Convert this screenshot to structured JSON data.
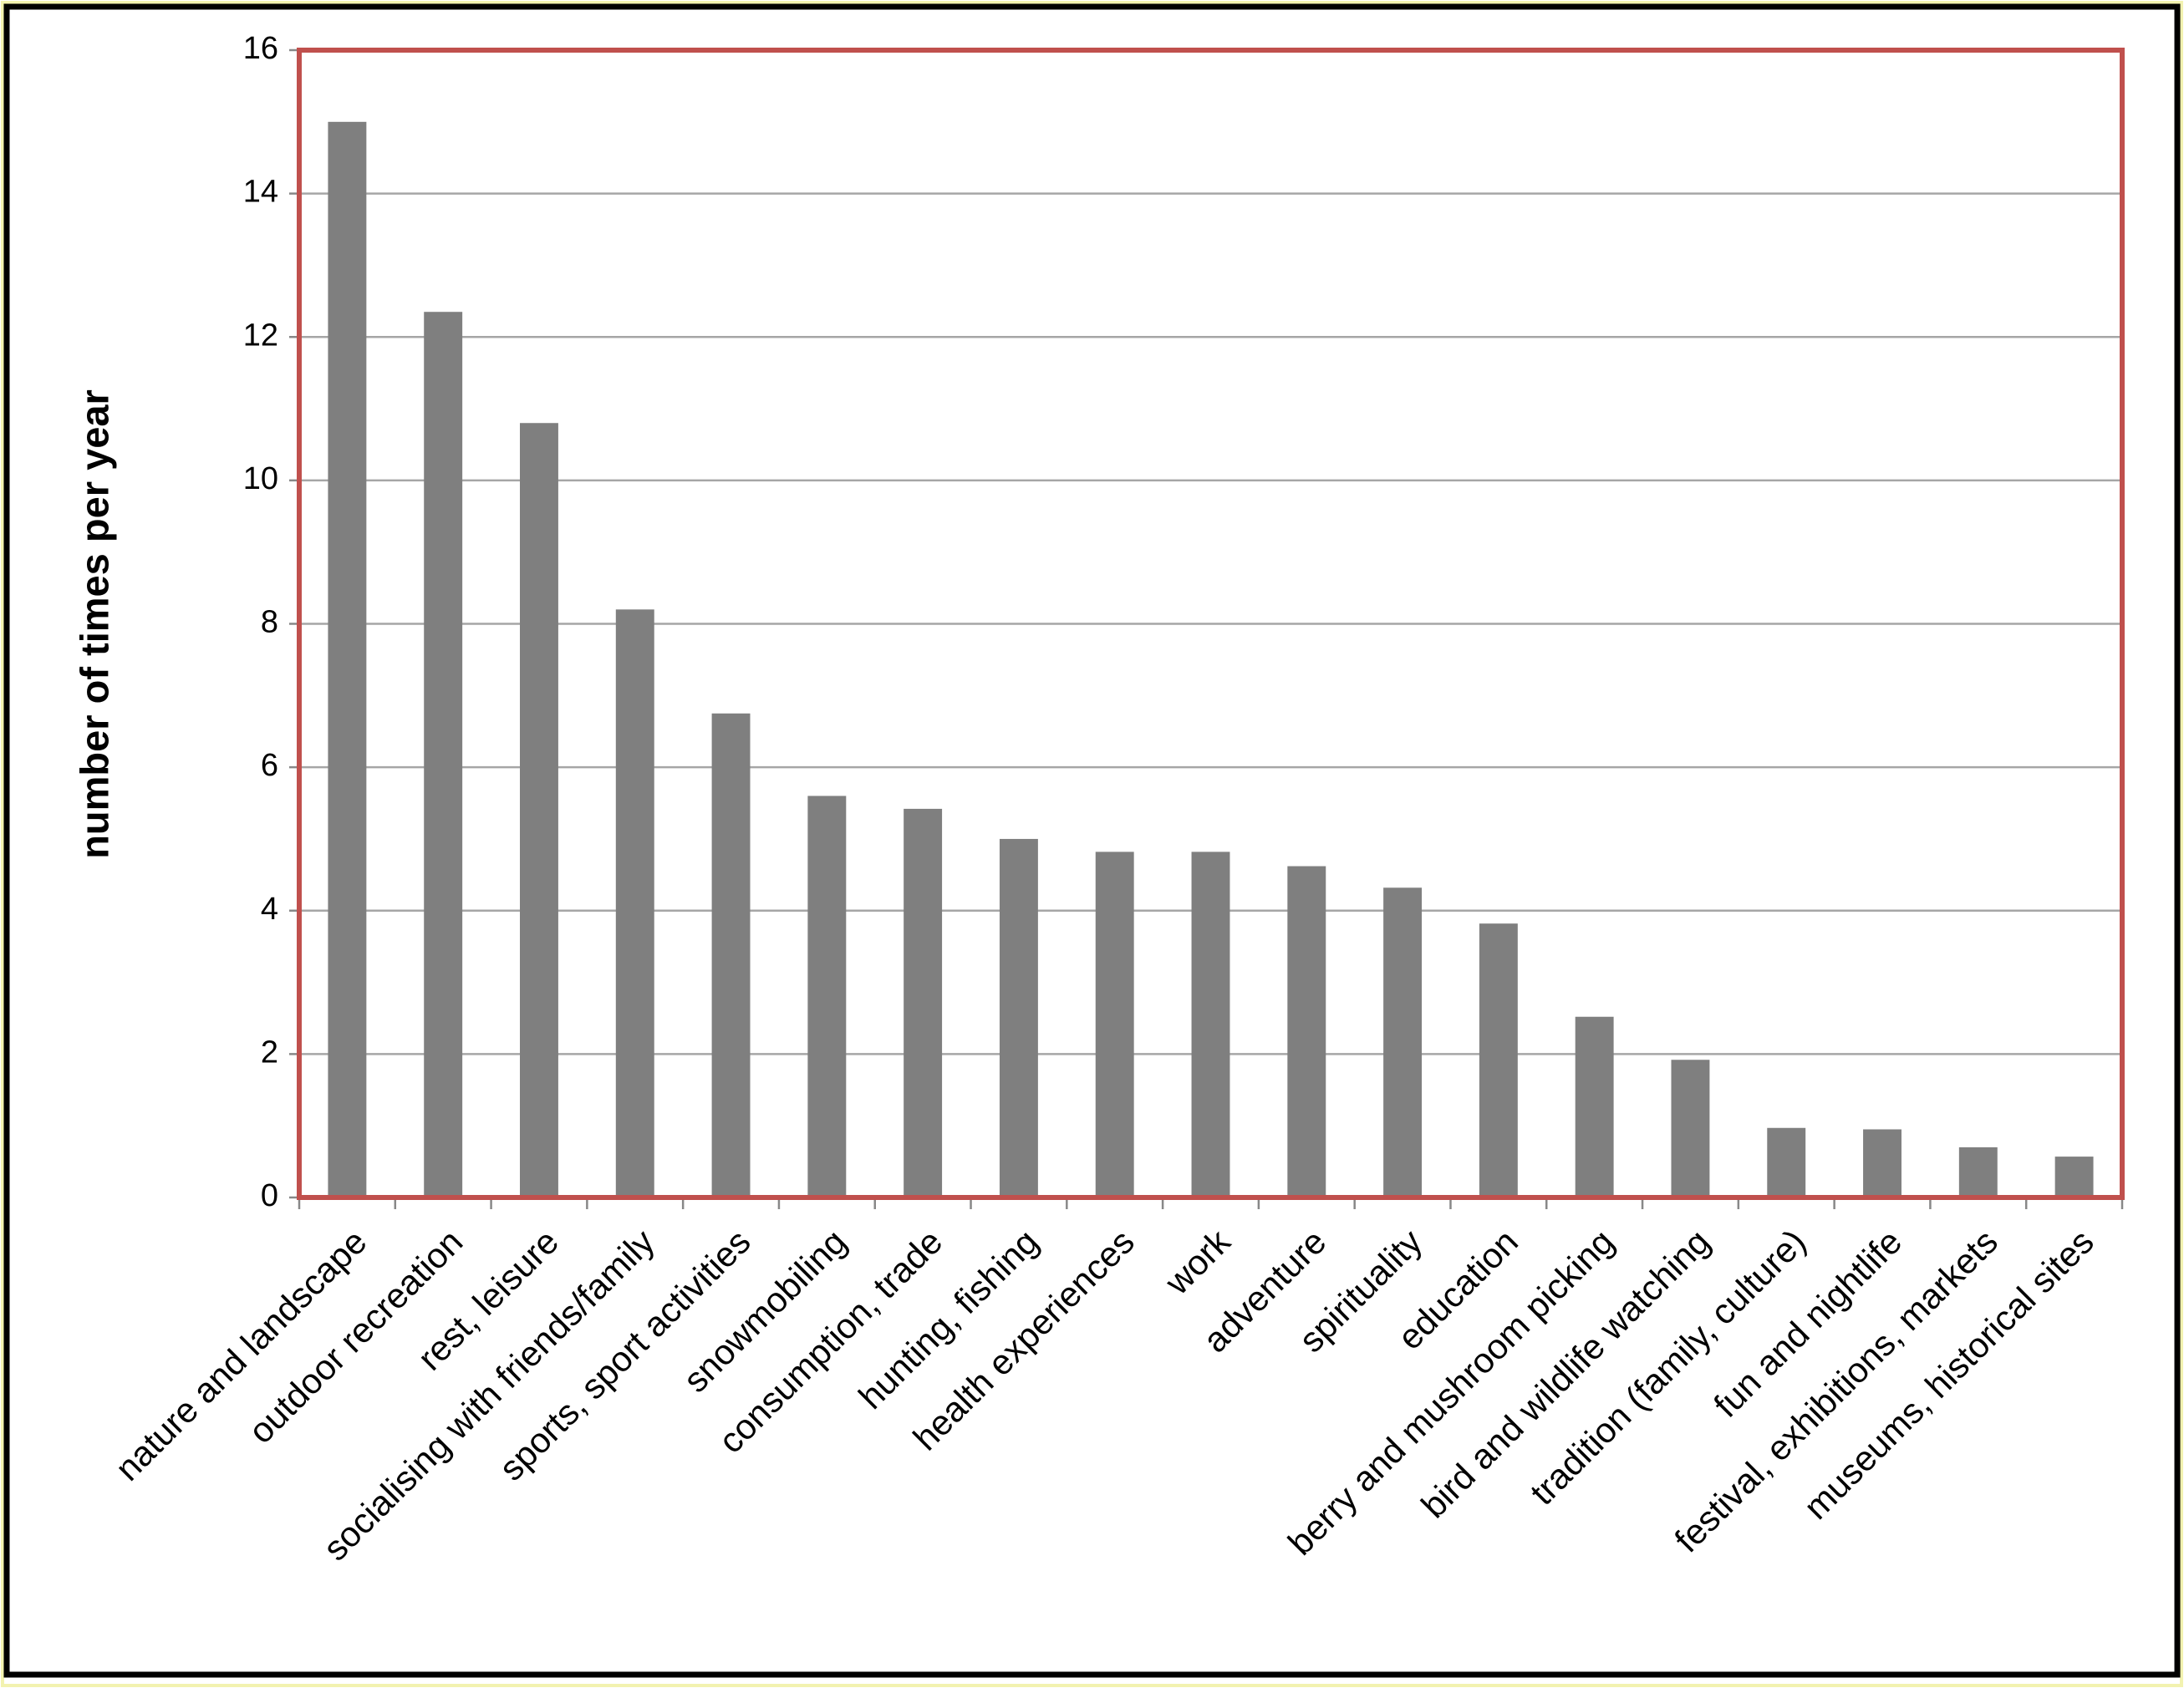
{
  "chart_data": {
    "type": "bar",
    "y_label": "number of times per year",
    "categories": [
      "nature and landscape",
      "outdoor recreation",
      "rest, leisure",
      "socialising with friends/family",
      "sports, sport activities",
      "snowmobiling",
      "consumption, trade",
      "hunting, fishing",
      "health experiences",
      "work",
      "adventure",
      "spirituality",
      "education",
      "berry and mushroom picking",
      "bird and wildlife watching",
      "tradition (family, culture)",
      "fun and nightlife",
      "festival, exhibitions, markets",
      "museums, historical sites"
    ],
    "values": [
      15.0,
      12.35,
      10.8,
      8.2,
      6.75,
      5.6,
      5.42,
      5.0,
      4.82,
      4.82,
      4.62,
      4.32,
      3.82,
      2.52,
      1.92,
      0.97,
      0.95,
      0.7,
      0.57
    ],
    "color": "#7f7f7f",
    "plot_border_color": "#c0504d",
    "ylim": [
      0,
      16
    ],
    "yticks": [
      0,
      2,
      4,
      6,
      8,
      10,
      12,
      14,
      16
    ],
    "grid": true
  }
}
